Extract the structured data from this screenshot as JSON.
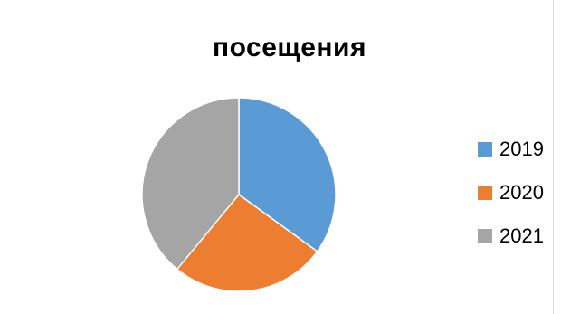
{
  "chart_data": {
    "type": "pie",
    "title": "посещения",
    "categories": [
      "2019",
      "2020",
      "2021"
    ],
    "values": [
      35,
      26,
      39
    ],
    "colors": [
      "#5b9bd5",
      "#ed7d31",
      "#a5a5a5"
    ],
    "legend_position": "right"
  }
}
